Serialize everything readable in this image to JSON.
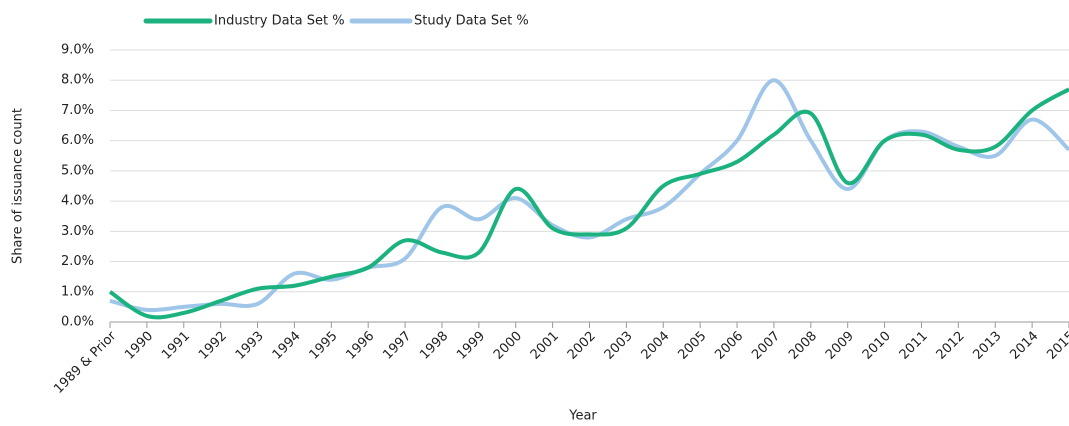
{
  "chart_data": {
    "type": "line",
    "ylabel": "Share of issuance count",
    "xlabel": "Year",
    "categories": [
      "1989 & Prior",
      "1990",
      "1991",
      "1992",
      "1993",
      "1994",
      "1995",
      "1996",
      "1997",
      "1998",
      "1999",
      "2000",
      "2001",
      "2002",
      "2003",
      "2004",
      "2005",
      "2006",
      "2007",
      "2008",
      "2009",
      "2010",
      "2011",
      "2012",
      "2013",
      "2014",
      "2015"
    ],
    "series": [
      {
        "name": "Industry Data Set %",
        "color": "#1bb27f",
        "values": [
          1.0,
          0.2,
          0.3,
          0.7,
          1.1,
          1.2,
          1.5,
          1.8,
          2.7,
          2.3,
          2.3,
          4.4,
          3.1,
          2.9,
          3.1,
          4.5,
          4.9,
          5.3,
          6.2,
          6.9,
          4.6,
          6.0,
          6.2,
          5.7,
          5.8,
          7.0,
          7.7
        ]
      },
      {
        "name": "Study Data Set %",
        "color": "#9fc5e8",
        "values": [
          0.7,
          0.4,
          0.5,
          0.6,
          0.6,
          1.6,
          1.4,
          1.8,
          2.1,
          3.8,
          3.4,
          4.1,
          3.2,
          2.8,
          3.4,
          3.8,
          4.9,
          6.0,
          8.0,
          6.0,
          4.4,
          6.0,
          6.3,
          5.8,
          5.5,
          6.7,
          5.7
        ]
      }
    ],
    "ylim": [
      0,
      9
    ],
    "yticks": [
      {
        "value": 0,
        "label": "0.0%"
      },
      {
        "value": 1,
        "label": "1.0%"
      },
      {
        "value": 2,
        "label": "2.0%"
      },
      {
        "value": 3,
        "label": "3.0%"
      },
      {
        "value": 4,
        "label": "4.0%"
      },
      {
        "value": 5,
        "label": "5.0%"
      },
      {
        "value": 6,
        "label": "6.0%"
      },
      {
        "value": 7,
        "label": "7.0%"
      },
      {
        "value": 8,
        "label": "8.0%"
      },
      {
        "value": 9,
        "label": "9.0%"
      }
    ],
    "grid": true
  }
}
